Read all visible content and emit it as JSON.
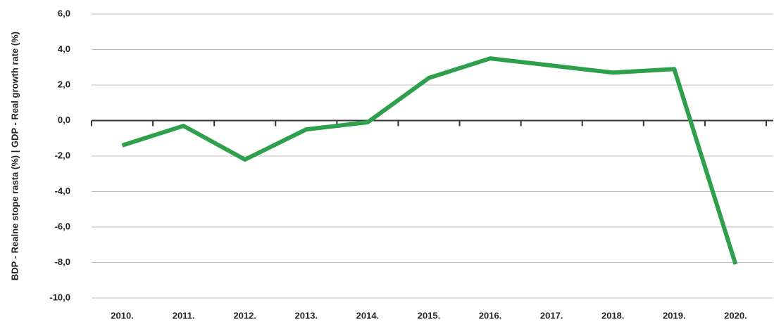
{
  "chart_data": {
    "type": "line",
    "y_label": "BDP - Realne stope rasta (%) | GDP - Real growth rate (%)",
    "categories": [
      "2010.",
      "2011.",
      "2012.",
      "2013.",
      "2014.",
      "2015.",
      "2016.",
      "2017.",
      "2018.",
      "2019.",
      "2020."
    ],
    "values": [
      -1.4,
      -0.3,
      -2.2,
      -0.5,
      -0.1,
      2.4,
      3.5,
      3.1,
      2.7,
      2.9,
      -8.1
    ],
    "color": "#2ea04c",
    "ylim": [
      -10,
      6
    ],
    "yticks": [
      {
        "value": 6,
        "label": "6,0"
      },
      {
        "value": 4,
        "label": "4,0"
      },
      {
        "value": 2,
        "label": "2,0"
      },
      {
        "value": 0,
        "label": "0,0"
      },
      {
        "value": -2,
        "label": "-2,0"
      },
      {
        "value": -4,
        "label": "-4,0"
      },
      {
        "value": -6,
        "label": "-6,0"
      },
      {
        "value": -8,
        "label": "-8,0"
      },
      {
        "value": -10,
        "label": "-10,0"
      }
    ],
    "grid": true
  }
}
